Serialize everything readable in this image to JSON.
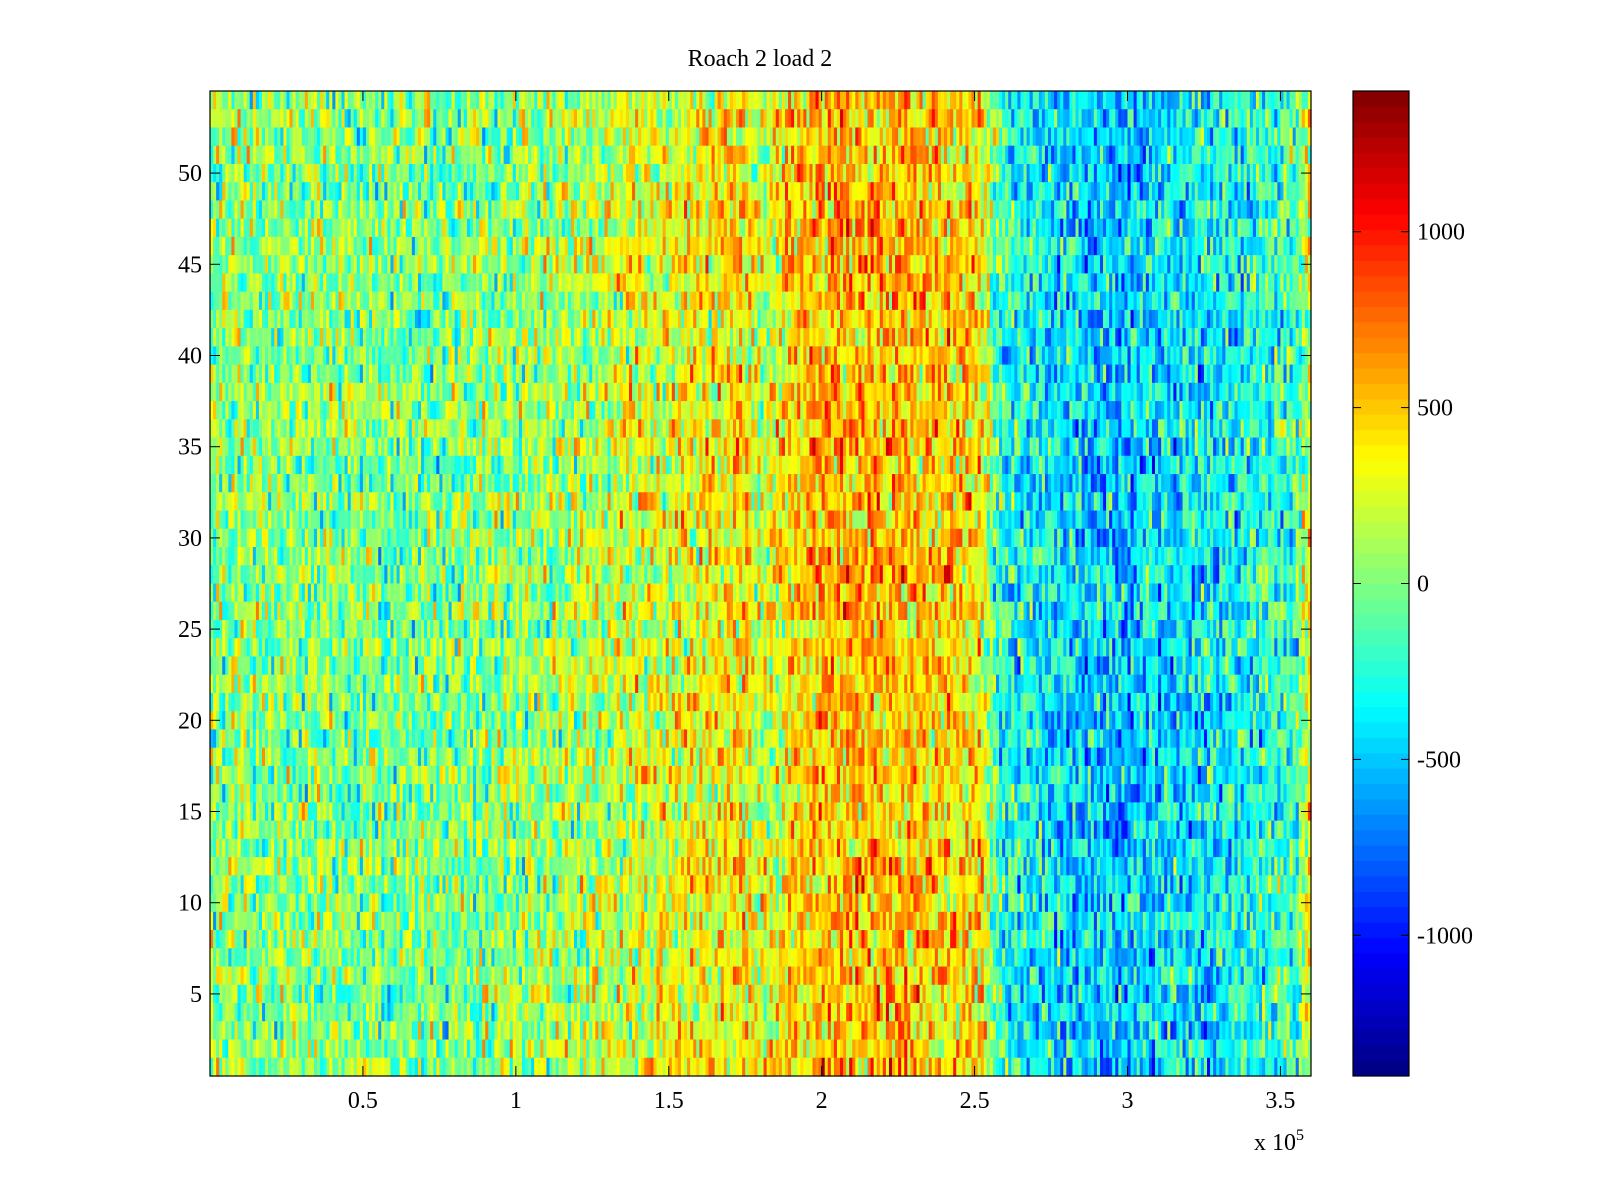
{
  "chart_data": {
    "type": "heatmap",
    "title": "Roach 2 load 2",
    "xlabel": "",
    "ylabel": "",
    "x_exponent_label": "x 10",
    "x_exponent_power": "5",
    "xlim": [
      0,
      360000
    ],
    "ylim": [
      0.5,
      54.5
    ],
    "x_ticks": [
      50000,
      100000,
      150000,
      200000,
      250000,
      300000,
      350000
    ],
    "x_tick_labels": [
      "0.5",
      "1",
      "1.5",
      "2",
      "2.5",
      "3",
      "3.5"
    ],
    "y_ticks": [
      5,
      10,
      15,
      20,
      25,
      30,
      35,
      40,
      45,
      50
    ],
    "y_tick_labels": [
      "5",
      "10",
      "15",
      "20",
      "25",
      "30",
      "35",
      "40",
      "45",
      "50"
    ],
    "rows": 54,
    "colormap": "jet",
    "color_range": [
      -1400,
      1400
    ],
    "colorbar": {
      "ticks": [
        1000,
        500,
        0,
        -500,
        -1000
      ],
      "tick_labels": [
        "1000",
        "500",
        "0",
        "-500",
        "-1000"
      ],
      "levels": 64
    },
    "column_mean_profile": {
      "x": [
        0,
        20000,
        40000,
        60000,
        80000,
        100000,
        120000,
        140000,
        160000,
        175000,
        180000,
        190000,
        200000,
        210000,
        225000,
        240000,
        252000,
        258000,
        270000,
        285000,
        300000,
        320000,
        340000,
        355000,
        360000
      ],
      "value": [
        50,
        20,
        0,
        -30,
        -10,
        40,
        120,
        220,
        320,
        400,
        150,
        450,
        550,
        520,
        540,
        480,
        380,
        -250,
        -350,
        -480,
        -500,
        -420,
        -300,
        -150,
        350
      ]
    },
    "noise_amplitude": 380
  }
}
